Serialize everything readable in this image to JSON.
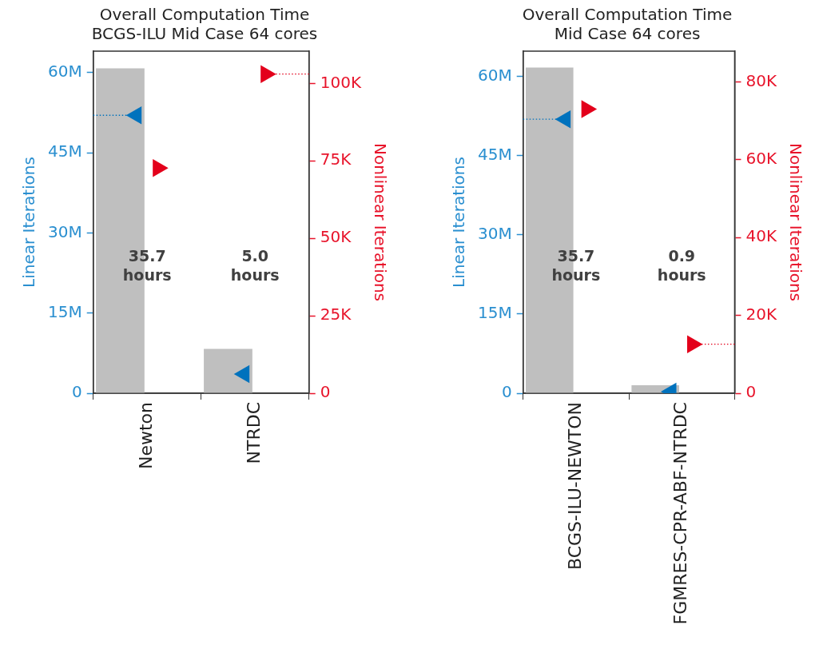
{
  "chart_data": [
    {
      "type": "bar",
      "title": "Overall Computation Time",
      "subtitle": "BCGS-ILU Mid Case 64 cores",
      "ylabel": "Linear Iterations",
      "y2label": "Nonlinear Iterations",
      "categories": [
        "Newton",
        "NTRDC"
      ],
      "series": [
        {
          "color": "#bfbfbf",
          "values": [
            60800000,
            8300000
          ]
        },
        {
          "type": "scatter",
          "color": "#0072bd",
          "marker": "triangle",
          "values": [
            52000000,
            3600000
          ]
        },
        {
          "type": "scatter",
          "color": "#e3001b",
          "marker": "triangle",
          "axis": "y2",
          "values": [
            72700,
            103000
          ]
        }
      ],
      "ylim": [
        0,
        64000000
      ],
      "yticks": [
        0,
        {
          "value": 15000000,
          "label": "15M"
        },
        {
          "value": 30000000,
          "label": "30M"
        },
        {
          "value": 45000000,
          "label": "45M"
        },
        {
          "value": 60000000,
          "label": "60M"
        }
      ],
      "y2lim": [
        0,
        110400
      ],
      "y2ticks": [
        0,
        {
          "value": 25000,
          "label": "25K"
        },
        {
          "value": 50000,
          "label": "50K"
        },
        {
          "value": 75000,
          "label": "75K"
        },
        {
          "value": 100000,
          "label": "100K"
        }
      ],
      "ref_lines": [
        {
          "axis": "y",
          "value": 52000000,
          "color": "#0072bd",
          "line_style": "dotted"
        },
        {
          "axis": "y2",
          "value": 103000,
          "color": "#e3001b",
          "line_style": "dotted"
        }
      ],
      "annotations": [
        "35.7 hours",
        "5.0 hours"
      ],
      "grid": false,
      "legend": false
    },
    {
      "type": "bar",
      "title": "Overall Computation Time",
      "subtitle": "Mid Case 64 cores",
      "ylabel": "Linear Iterations",
      "y2label": "Nonlinear Iterations",
      "categories": [
        "BCGS-ILU-NEWTON",
        "FGMRES-CPR-ABF-NTRDC"
      ],
      "series": [
        {
          "color": "#bfbfbf",
          "values": [
            61700000,
            1500000
          ]
        },
        {
          "type": "scatter",
          "color": "#0072bd",
          "marker": "triangle",
          "values": [
            51900000,
            300000
          ]
        },
        {
          "type": "scatter",
          "color": "#e3001b",
          "marker": "triangle",
          "axis": "y2",
          "values": [
            73000,
            12600
          ]
        }
      ],
      "ylim": [
        0,
        64800000
      ],
      "yticks": [
        0,
        {
          "value": 15000000,
          "label": "15M"
        },
        {
          "value": 30000000,
          "label": "30M"
        },
        {
          "value": 45000000,
          "label": "45M"
        },
        {
          "value": 60000000,
          "label": "60M"
        }
      ],
      "y2lim": [
        0,
        87900
      ],
      "y2ticks": [
        0,
        {
          "value": 20000,
          "label": "20K"
        },
        {
          "value": 40000,
          "label": "40K"
        },
        {
          "value": 60000,
          "label": "60K"
        },
        {
          "value": 80000,
          "label": "80K"
        }
      ],
      "ref_lines": [
        {
          "axis": "y",
          "value": 51900000,
          "color": "#0072bd",
          "line_style": "dotted"
        },
        {
          "axis": "y2",
          "value": 12600,
          "color": "#e3001b",
          "line_style": "dotted"
        }
      ],
      "annotations": [
        "35.7 hours",
        "0.9 hours"
      ],
      "grid": false,
      "legend": false
    }
  ]
}
